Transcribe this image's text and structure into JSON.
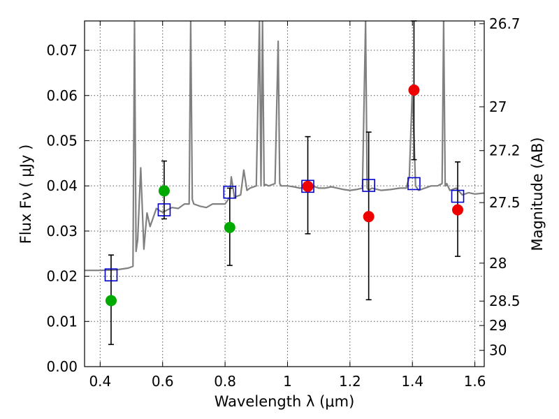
{
  "chart_data": {
    "type": "scatter",
    "title": "",
    "xlabel": "Wavelength  λ (μm)",
    "ylabel": "Flux  Fν  ( μJy )",
    "y2label": "Magnitude (AB)",
    "xlim": [
      0.35,
      1.63
    ],
    "ylim": [
      0.0,
      0.0765
    ],
    "grid": true,
    "x_ticks": [
      {
        "value": 0.4,
        "label": "0.4"
      },
      {
        "value": 0.6,
        "label": "0.6"
      },
      {
        "value": 0.8,
        "label": "0.8"
      },
      {
        "value": 1.0,
        "label": "1"
      },
      {
        "value": 1.2,
        "label": "1.2"
      },
      {
        "value": 1.4,
        "label": "1.4"
      },
      {
        "value": 1.6,
        "label": "1.6"
      }
    ],
    "y_ticks": [
      {
        "value": 0.0,
        "label": "0.00"
      },
      {
        "value": 0.01,
        "label": "0.01"
      },
      {
        "value": 0.02,
        "label": "0.02"
      },
      {
        "value": 0.03,
        "label": "0.03"
      },
      {
        "value": 0.04,
        "label": "0.04"
      },
      {
        "value": 0.05,
        "label": "0.05"
      },
      {
        "value": 0.06,
        "label": "0.06"
      },
      {
        "value": 0.07,
        "label": "0.07"
      }
    ],
    "y2_ticks": [
      {
        "flux": 0.0759,
        "label": "26.7"
      },
      {
        "flux": 0.0575,
        "label": "27"
      },
      {
        "flux": 0.0478,
        "label": "27.2"
      },
      {
        "flux": 0.0363,
        "label": "27.5"
      },
      {
        "flux": 0.0229,
        "label": "28"
      },
      {
        "flux": 0.0145,
        "label": "28.5"
      },
      {
        "flux": 0.0091,
        "label": "29"
      },
      {
        "flux": 0.0036,
        "label": "30"
      }
    ],
    "colors": {
      "spectrum": "#808080",
      "model": "#0000cc",
      "green": "#00aa00",
      "red": "#ee0000",
      "errorbar": "#000000",
      "grid": "#555555"
    },
    "spectrum": {
      "x": [
        0.35,
        0.4,
        0.45,
        0.49,
        0.505,
        0.51,
        0.515,
        0.52,
        0.53,
        0.54,
        0.545,
        0.55,
        0.56,
        0.57,
        0.58,
        0.59,
        0.6,
        0.61,
        0.63,
        0.65,
        0.67,
        0.685,
        0.69,
        0.695,
        0.7,
        0.72,
        0.74,
        0.76,
        0.78,
        0.8,
        0.815,
        0.82,
        0.83,
        0.85,
        0.86,
        0.87,
        0.88,
        0.9,
        0.91,
        0.915,
        0.92,
        0.925,
        0.93,
        0.94,
        0.96,
        0.97,
        0.975,
        0.98,
        1.0,
        1.02,
        1.04,
        1.06,
        1.08,
        1.1,
        1.12,
        1.14,
        1.16,
        1.18,
        1.2,
        1.22,
        1.24,
        1.25,
        1.255,
        1.26,
        1.27,
        1.3,
        1.33,
        1.36,
        1.38,
        1.39,
        1.4,
        1.41,
        1.42,
        1.44,
        1.46,
        1.48,
        1.495,
        1.5,
        1.505,
        1.51,
        1.52,
        1.54,
        1.56,
        1.58,
        1.6,
        1.63
      ],
      "y": [
        0.0213,
        0.0213,
        0.0214,
        0.0218,
        0.0222,
        0.0765,
        0.0255,
        0.028,
        0.044,
        0.026,
        0.03,
        0.034,
        0.031,
        0.033,
        0.035,
        0.0345,
        0.0342,
        0.0345,
        0.0352,
        0.035,
        0.036,
        0.036,
        0.0765,
        0.037,
        0.036,
        0.0355,
        0.0352,
        0.036,
        0.036,
        0.036,
        0.0375,
        0.042,
        0.0375,
        0.038,
        0.0435,
        0.039,
        0.0395,
        0.04,
        0.0765,
        0.04,
        0.0765,
        0.04,
        0.0403,
        0.04,
        0.0405,
        0.072,
        0.0405,
        0.04,
        0.04,
        0.0398,
        0.0395,
        0.0398,
        0.04,
        0.0395,
        0.0395,
        0.0398,
        0.0395,
        0.0392,
        0.039,
        0.0392,
        0.0395,
        0.0765,
        0.0395,
        0.039,
        0.0395,
        0.039,
        0.0392,
        0.0395,
        0.0395,
        0.042,
        0.062,
        0.04,
        0.039,
        0.0395,
        0.04,
        0.04,
        0.0405,
        0.0765,
        0.04,
        0.0405,
        0.039,
        0.0395,
        0.038,
        0.0385,
        0.0382,
        0.0384
      ]
    },
    "model_points": {
      "x": [
        0.435,
        0.605,
        0.815,
        1.065,
        1.26,
        1.405,
        1.545
      ],
      "y": [
        0.0203,
        0.0347,
        0.0386,
        0.0399,
        0.0401,
        0.0405,
        0.0377
      ]
    },
    "observed_green": {
      "x": [
        0.435,
        0.605,
        0.815
      ],
      "y": [
        0.0146,
        0.0389,
        0.0308
      ],
      "yerr_low": [
        0.0049,
        0.0327,
        0.0224
      ],
      "yerr_high": [
        0.0247,
        0.0455,
        0.0395
      ]
    },
    "observed_red": {
      "x": [
        1.065,
        1.26,
        1.405,
        1.545
      ],
      "y": [
        0.0399,
        0.0332,
        0.0612,
        0.0347
      ],
      "yerr_low": [
        0.0294,
        0.0148,
        0.0458,
        0.0244
      ],
      "yerr_high": [
        0.0509,
        0.0519,
        0.0765,
        0.0453
      ]
    }
  }
}
